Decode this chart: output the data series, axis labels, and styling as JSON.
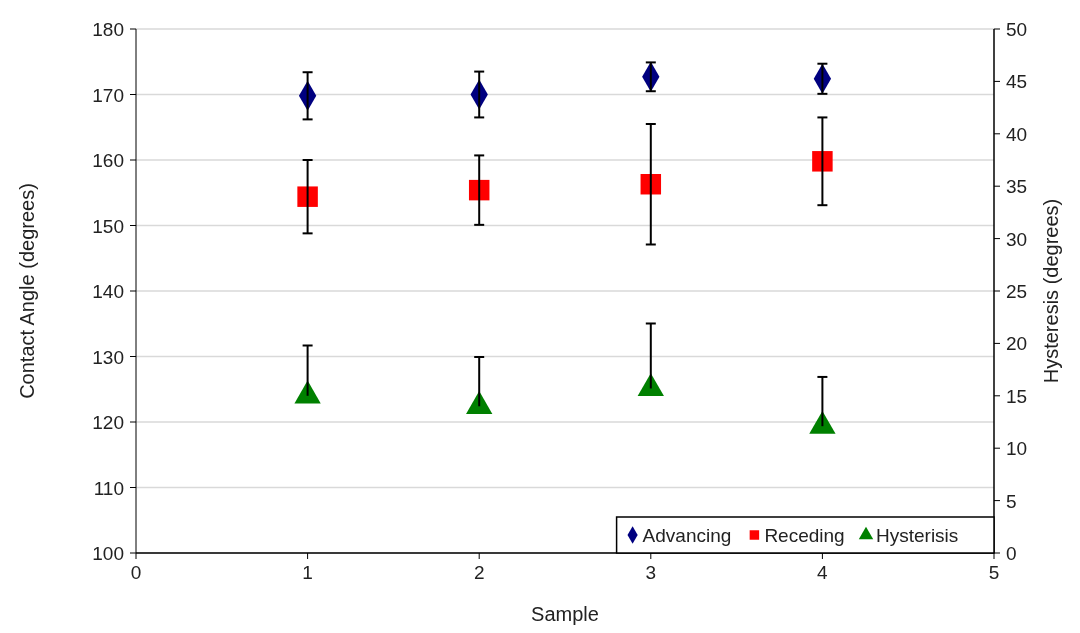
{
  "chart_data": {
    "type": "scatter",
    "xlabel": "Sample",
    "ylabel": "Contact Angle (degrees)",
    "y2label": "Hysteresis (degrees)",
    "x": [
      1,
      2,
      3,
      4
    ],
    "xlim": [
      0,
      5
    ],
    "xticks": [
      0,
      1,
      2,
      3,
      4,
      5
    ],
    "ylim": [
      100,
      180
    ],
    "yticks": [
      100,
      110,
      120,
      130,
      140,
      150,
      160,
      170,
      180
    ],
    "y2lim": [
      0,
      50
    ],
    "y2ticks": [
      0,
      5,
      10,
      15,
      20,
      25,
      30,
      35,
      40,
      45,
      50
    ],
    "grid": "y",
    "legend": "bottom right",
    "series": [
      {
        "name": "Advancing",
        "color": "#000080",
        "marker": "diamond",
        "values": [
          169.8,
          170,
          172.7,
          172.4
        ],
        "errors": [
          3.6,
          3.5,
          2.2,
          2.3
        ]
      },
      {
        "name": "Receding",
        "color": "#ff0000",
        "marker": "square",
        "values": [
          154.4,
          155.4,
          156.3,
          159.8
        ],
        "errors": [
          5.6,
          5.3,
          9.2,
          6.7
        ]
      },
      {
        "name": "Hysterisis",
        "color": "#008000",
        "marker": "triangle",
        "axis": "y2",
        "values": [
          15,
          14,
          15.7,
          12.1
        ],
        "errors": [
          [
            15,
            19.8
          ],
          [
            14,
            18.7
          ],
          [
            15.7,
            21.9
          ],
          [
            12.1,
            16.8
          ]
        ]
      }
    ]
  }
}
